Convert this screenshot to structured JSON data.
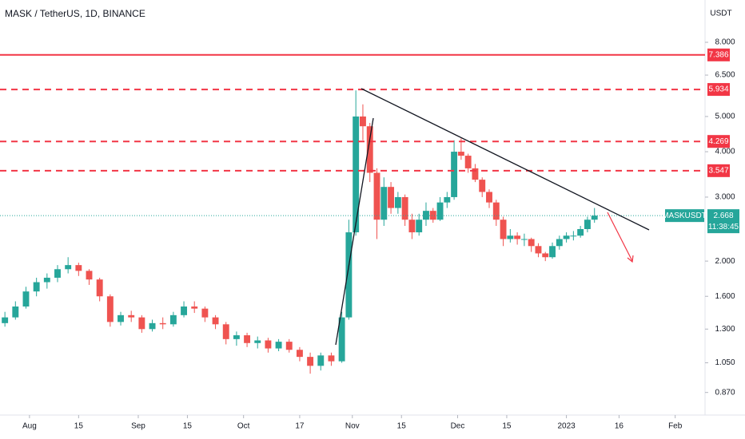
{
  "chart_data": {
    "type": "candlestick",
    "title": "MASK / TetherUS, 1D, BINANCE",
    "y_axis_label": "USDT",
    "log_scale": true,
    "grid": false,
    "up_color": "#26a69a",
    "down_color": "#ef5350",
    "xlim": [
      -8.4,
      192.5
    ],
    "xticks": [
      {
        "value": 0,
        "label": "Aug"
      },
      {
        "value": 14,
        "label": "15"
      },
      {
        "value": 31,
        "label": "Sep"
      },
      {
        "value": 45,
        "label": "15"
      },
      {
        "value": 61,
        "label": "Oct"
      },
      {
        "value": 77,
        "label": "17"
      },
      {
        "value": 92,
        "label": "Nov"
      },
      {
        "value": 106,
        "label": "15"
      },
      {
        "value": 122,
        "label": "Dec"
      },
      {
        "value": 136,
        "label": "15"
      },
      {
        "value": 153,
        "label": "2023"
      },
      {
        "value": 168,
        "label": "16"
      },
      {
        "value": 184,
        "label": "Feb"
      }
    ],
    "ylim": [
      0.754,
      10.46
    ],
    "yticks": [
      {
        "value": 8,
        "label": "8.000"
      },
      {
        "value": 6.5,
        "label": "6.500"
      },
      {
        "value": 5,
        "label": "5.000"
      },
      {
        "value": 4,
        "label": "4.000"
      },
      {
        "value": 3,
        "label": "3.000"
      },
      {
        "value": 2,
        "label": "2.000"
      },
      {
        "value": 1.6,
        "label": "1.600"
      },
      {
        "value": 1.3,
        "label": "1.300"
      },
      {
        "value": 1.05,
        "label": "1.050"
      },
      {
        "value": 0.87,
        "label": "0.870"
      }
    ],
    "x": [
      -7,
      -4,
      -1,
      2,
      5,
      8,
      11,
      14,
      17,
      20,
      23,
      26,
      29,
      32,
      35,
      38,
      41,
      44,
      47,
      50,
      53,
      56,
      59,
      62,
      65,
      68,
      71,
      74,
      77,
      80,
      83,
      86,
      89,
      91,
      93,
      95,
      97,
      99,
      101,
      103,
      105,
      107,
      109,
      111,
      113,
      115,
      117,
      119,
      121,
      123,
      125,
      127,
      129,
      131,
      133,
      135,
      137,
      139,
      141,
      143,
      145,
      147,
      149,
      151,
      153,
      155,
      157,
      159,
      161
    ],
    "open": [
      1.35,
      1.4,
      1.5,
      1.65,
      1.75,
      1.8,
      1.9,
      1.95,
      1.88,
      1.78,
      1.6,
      1.36,
      1.42,
      1.4,
      1.3,
      1.35,
      1.34,
      1.42,
      1.5,
      1.48,
      1.4,
      1.34,
      1.22,
      1.25,
      1.19,
      1.21,
      1.15,
      1.2,
      1.14,
      1.09,
      1.03,
      1.1,
      1.06,
      1.4,
      2.4,
      5.0,
      4.7,
      3.5,
      2.6,
      3.2,
      2.8,
      3.0,
      2.6,
      2.4,
      2.6,
      2.75,
      2.6,
      2.9,
      3.0,
      4.0,
      3.9,
      3.6,
      3.35,
      3.1,
      2.9,
      2.6,
      2.3,
      2.35,
      2.3,
      2.3,
      2.2,
      2.1,
      2.05,
      2.2,
      2.3,
      2.35,
      2.35,
      2.45,
      2.6
    ],
    "high": [
      1.45,
      1.55,
      1.7,
      1.8,
      1.85,
      1.95,
      2.05,
      1.98,
      1.9,
      1.8,
      1.62,
      1.45,
      1.46,
      1.42,
      1.38,
      1.4,
      1.45,
      1.55,
      1.55,
      1.5,
      1.42,
      1.36,
      1.28,
      1.27,
      1.24,
      1.23,
      1.22,
      1.22,
      1.16,
      1.12,
      1.12,
      1.12,
      1.45,
      2.6,
      5.9,
      5.4,
      4.8,
      3.6,
      3.4,
      3.3,
      3.1,
      3.05,
      2.7,
      2.7,
      2.9,
      2.8,
      3.0,
      3.1,
      4.3,
      4.35,
      3.95,
      3.7,
      3.4,
      3.15,
      2.95,
      2.65,
      2.45,
      2.4,
      2.38,
      2.32,
      2.24,
      2.12,
      2.25,
      2.35,
      2.4,
      2.42,
      2.5,
      2.65,
      2.8
    ],
    "low": [
      1.32,
      1.38,
      1.48,
      1.6,
      1.68,
      1.75,
      1.85,
      1.82,
      1.72,
      1.55,
      1.32,
      1.33,
      1.36,
      1.27,
      1.28,
      1.3,
      1.32,
      1.4,
      1.44,
      1.36,
      1.3,
      1.18,
      1.17,
      1.16,
      1.15,
      1.12,
      1.13,
      1.12,
      1.06,
      0.98,
      1.0,
      1.03,
      1.05,
      1.38,
      2.35,
      4.3,
      3.3,
      2.3,
      2.5,
      2.7,
      2.7,
      2.5,
      2.3,
      2.35,
      2.5,
      2.55,
      2.58,
      2.8,
      2.95,
      3.8,
      3.5,
      3.3,
      3.0,
      2.8,
      2.5,
      2.2,
      2.25,
      2.22,
      2.2,
      2.12,
      2.05,
      2.0,
      2.03,
      2.15,
      2.25,
      2.28,
      2.32,
      2.4,
      2.55
    ],
    "close": [
      1.4,
      1.5,
      1.65,
      1.75,
      1.8,
      1.9,
      1.95,
      1.88,
      1.78,
      1.6,
      1.36,
      1.42,
      1.4,
      1.3,
      1.35,
      1.34,
      1.42,
      1.5,
      1.48,
      1.4,
      1.34,
      1.22,
      1.25,
      1.19,
      1.21,
      1.15,
      1.2,
      1.14,
      1.09,
      1.03,
      1.1,
      1.06,
      1.4,
      2.4,
      5.0,
      4.7,
      3.5,
      2.6,
      3.2,
      2.8,
      3.0,
      2.6,
      2.4,
      2.6,
      2.75,
      2.6,
      2.9,
      3.0,
      4.0,
      3.9,
      3.6,
      3.35,
      3.1,
      2.9,
      2.6,
      2.3,
      2.35,
      2.3,
      2.3,
      2.2,
      2.1,
      2.05,
      2.2,
      2.3,
      2.35,
      2.35,
      2.45,
      2.6,
      2.668
    ],
    "levels": [
      {
        "value": 7.386,
        "style": "solid",
        "color": "#f23645"
      },
      {
        "value": 5.934,
        "style": "dashed",
        "color": "#f23645"
      },
      {
        "value": 4.269,
        "style": "dashed",
        "color": "#f23645"
      },
      {
        "value": 3.547,
        "style": "dashed",
        "color": "#f23645"
      }
    ],
    "last_price": {
      "value": 2.668,
      "symbol": "MASKUSDT",
      "countdown": "11:38:45",
      "color": "#26a69a"
    }
  }
}
